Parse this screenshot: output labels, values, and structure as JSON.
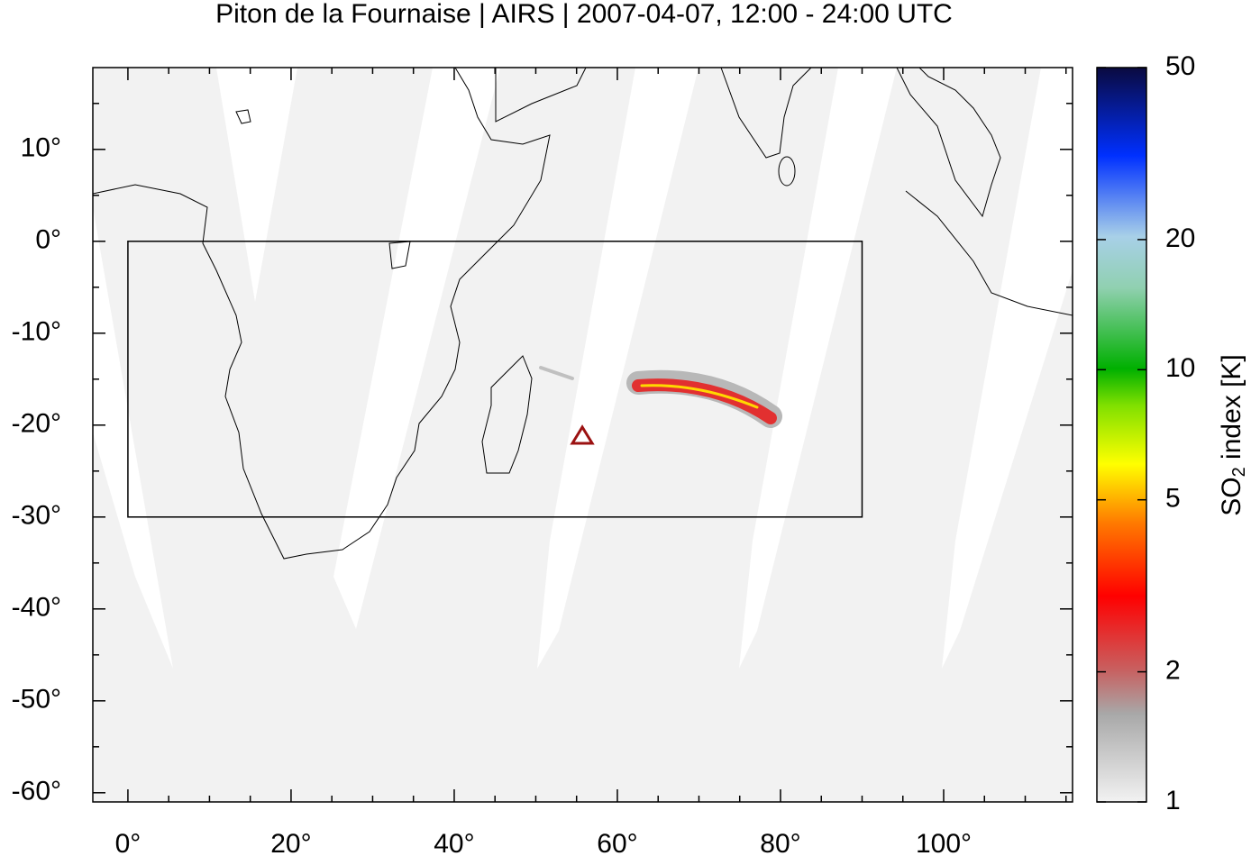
{
  "chart_data": {
    "type": "map",
    "title": "Piton de la Fournaise | AIRS | 2007-04-07, 12:00 - 24:00 UTC",
    "xlim": [
      -4.3,
      115.8
    ],
    "ylim": [
      -61,
      18.9
    ],
    "xticks": [
      {
        "value": 0,
        "label": "0°"
      },
      {
        "value": 20,
        "label": "20°"
      },
      {
        "value": 40,
        "label": "40°"
      },
      {
        "value": 60,
        "label": "60°"
      },
      {
        "value": 80,
        "label": "80°"
      },
      {
        "value": 100,
        "label": "100°"
      }
    ],
    "yticks": [
      {
        "value": 10,
        "label": "10°"
      },
      {
        "value": 0,
        "label": "0°"
      },
      {
        "value": -10,
        "label": "-10°"
      },
      {
        "value": -20,
        "label": "-20°"
      },
      {
        "value": -30,
        "label": "-30°"
      },
      {
        "value": -40,
        "label": "-40°"
      },
      {
        "value": -50,
        "label": "-50°"
      },
      {
        "value": -60,
        "label": "-60°"
      }
    ],
    "xminorticks": [
      5,
      10,
      15,
      25,
      30,
      35,
      45,
      50,
      55,
      65,
      70,
      75,
      85,
      90,
      95,
      105,
      110,
      115
    ],
    "yminorticks": [
      15,
      5,
      -5,
      -15,
      -25,
      -35,
      -45,
      -55
    ],
    "box": {
      "x": [
        0,
        90
      ],
      "y": [
        -30,
        0
      ]
    },
    "volcano": {
      "x": 55.7,
      "y": -21.2,
      "color": "#9b1111"
    },
    "colorbar": {
      "scale": "log",
      "lim": [
        1,
        50
      ],
      "ticks": [
        1,
        2,
        5,
        10,
        20,
        50
      ],
      "label": {
        "text": "SO",
        "sub": "2",
        "rest": " index [K]"
      }
    }
  }
}
